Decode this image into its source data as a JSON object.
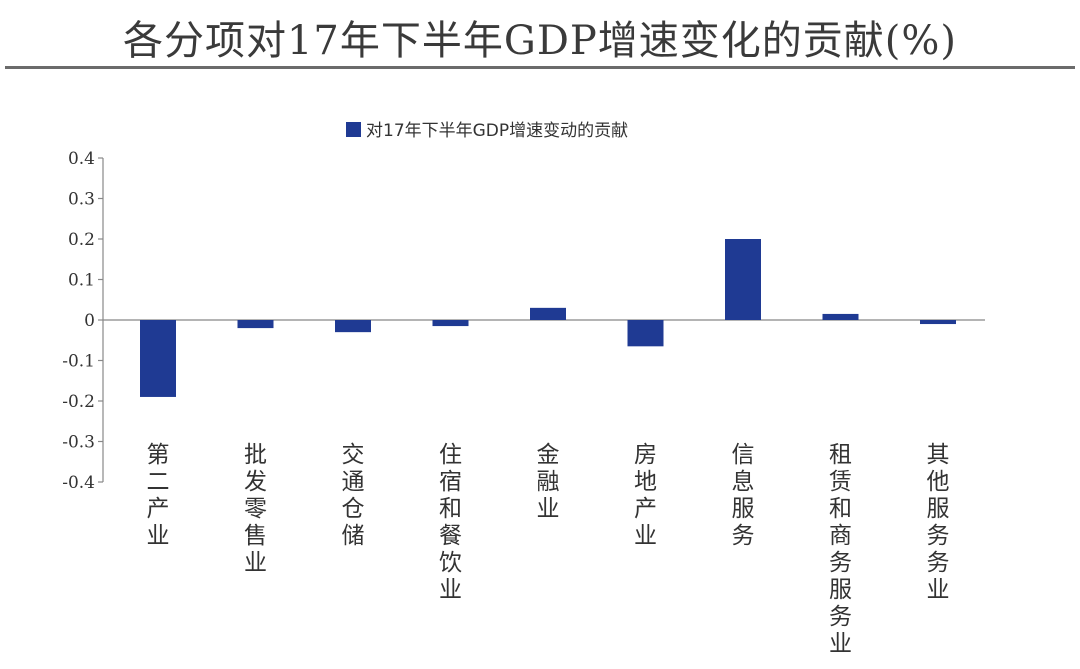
{
  "page": {
    "title": "各分项对17年下半年GDP增速变化的贡献(%)"
  },
  "chart_data": {
    "type": "bar",
    "categories": [
      "第二产业",
      "批发零售业",
      "交通仓储",
      "住宿和餐饮业",
      "金融业",
      "房地产业",
      "信息服务",
      "租赁和商务服务业",
      "其他服务务业"
    ],
    "series": [
      {
        "name": "对17年下半年GDP增速变动的贡献",
        "values": [
          -0.19,
          -0.02,
          -0.03,
          -0.015,
          0.03,
          -0.065,
          0.2,
          0.015,
          -0.01
        ]
      }
    ],
    "ylim": [
      -0.4,
      0.4
    ],
    "yticks": [
      0.4,
      0.3,
      0.2,
      0.1,
      0,
      -0.1,
      -0.2,
      -0.3,
      -0.4
    ],
    "ytick_labels": [
      "0.4",
      "0.3",
      "0.2",
      "0.1",
      "0",
      "-0.1",
      "-0.2",
      "-0.3",
      "-0.4"
    ],
    "legend_position": "top-center",
    "grid": false,
    "colors": {
      "bar": "#1f3a93",
      "axis": "#888888"
    }
  }
}
